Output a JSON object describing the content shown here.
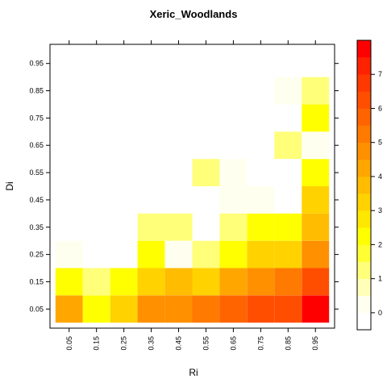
{
  "chart_data": {
    "type": "heatmap",
    "title": "Xeric_Woodlands",
    "xlabel": "Ri",
    "ylabel": "Di",
    "x": [
      "0.05",
      "0.15",
      "0.25",
      "0.35",
      "0.45",
      "0.55",
      "0.65",
      "0.75",
      "0.85",
      "0.95"
    ],
    "y": [
      "0.05",
      "0.15",
      "0.25",
      "0.35",
      "0.45",
      "0.55",
      "0.65",
      "0.75",
      "0.85",
      "0.95"
    ],
    "values": [
      [
        4.2,
        2.0,
        3.3,
        4.6,
        4.8,
        5.3,
        5.6,
        6.0,
        6.0,
        7.5
      ],
      [
        2.3,
        1.2,
        2.0,
        3.0,
        3.5,
        3.0,
        4.4,
        4.8,
        5.3,
        6.2
      ],
      [
        0.1,
        null,
        null,
        2.0,
        0.0,
        1.2,
        2.0,
        3.4,
        3.4,
        4.5
      ],
      [
        null,
        null,
        null,
        1.3,
        1.3,
        null,
        1.1,
        2.3,
        2.3,
        3.6
      ],
      [
        null,
        null,
        null,
        null,
        null,
        null,
        0.1,
        0.1,
        null,
        3.0
      ],
      [
        null,
        null,
        null,
        null,
        null,
        1.1,
        0.05,
        null,
        null,
        2.1
      ],
      [
        null,
        null,
        null,
        null,
        null,
        null,
        null,
        null,
        1.2,
        0.0
      ],
      [
        null,
        null,
        null,
        null,
        null,
        null,
        null,
        null,
        null,
        2.2
      ],
      [
        null,
        null,
        null,
        null,
        null,
        null,
        null,
        null,
        0.05,
        1.3
      ],
      [
        null,
        null,
        null,
        null,
        null,
        null,
        null,
        null,
        null,
        null
      ]
    ],
    "colorbar": {
      "ticks": [
        "0",
        "1",
        "2",
        "3",
        "4",
        "5",
        "6",
        "7"
      ],
      "range": [
        -0.5,
        8
      ],
      "bands": 17,
      "colors": [
        "#ffffff",
        "#fffff0",
        "#ffffb8",
        "#ffff7a",
        "#ffff33",
        "#ffff00",
        "#ffe800",
        "#ffd200",
        "#ffbc00",
        "#ffa600",
        "#ff9000",
        "#ff7a00",
        "#ff6400",
        "#ff4e00",
        "#ff3800",
        "#ff2200",
        "#ff0000"
      ]
    }
  }
}
